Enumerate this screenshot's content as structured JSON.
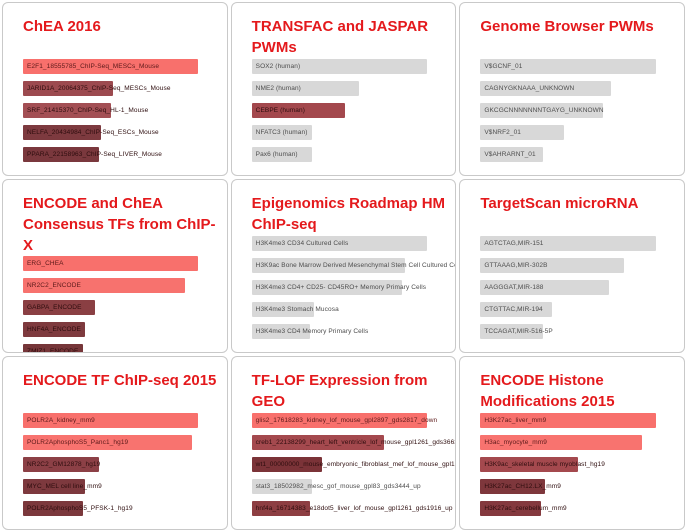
{
  "colors": {
    "title_red": "#e4191c",
    "bar_bright_red": "#f8706c",
    "bar_gray": "#d8d8d8"
  },
  "panels": [
    {
      "title": "ChEA 2016",
      "bars": [
        {
          "label": "E2F1_18555785_ChIP-Seq_MESCs_Mouse",
          "width_pct": 90,
          "color": "#f8706c",
          "shade": "bright"
        },
        {
          "label": "JARID1A_20064375_ChIP-Seq_MESCs_Mouse",
          "width_pct": 46,
          "color": "#9c4a4f",
          "shade": "dark"
        },
        {
          "label": "SRF_21415370_ChIP-Seq_HL-1_Mouse",
          "width_pct": 45,
          "color": "#a34f54",
          "shade": "dark"
        },
        {
          "label": "NELFA_20434984_ChIP-Seq_ESCs_Mouse",
          "width_pct": 40,
          "color": "#7d3a3f",
          "shade": "dark"
        },
        {
          "label": "PPARA_22158963_ChIP-Seq_LIVER_Mouse",
          "width_pct": 39,
          "color": "#7a383d",
          "shade": "dark"
        }
      ]
    },
    {
      "title": "TRANSFAC and JASPAR PWMs",
      "bars": [
        {
          "label": "SOX2 (human)",
          "width_pct": 90,
          "color": "#d8d8d8",
          "shade": "gray"
        },
        {
          "label": "NME2 (human)",
          "width_pct": 55,
          "color": "#d8d8d8",
          "shade": "gray"
        },
        {
          "label": "CEBPE (human)",
          "width_pct": 48,
          "color": "#a3484d",
          "shade": "dark"
        },
        {
          "label": "NFATC3 (human)",
          "width_pct": 31,
          "color": "#d8d8d8",
          "shade": "gray"
        },
        {
          "label": "Pax6 (human)",
          "width_pct": 31,
          "color": "#d8d8d8",
          "shade": "gray"
        }
      ]
    },
    {
      "title": "Genome Browser PWMs",
      "bars": [
        {
          "label": "V$GCNF_01",
          "width_pct": 90,
          "color": "#d8d8d8",
          "shade": "gray"
        },
        {
          "label": "CAGNYGKNAAA_UNKNOWN",
          "width_pct": 67,
          "color": "#d8d8d8",
          "shade": "gray"
        },
        {
          "label": "GKCGCNNNNNNNTGAYG_UNKNOWN",
          "width_pct": 63,
          "color": "#d8d8d8",
          "shade": "gray"
        },
        {
          "label": "V$NRF2_01",
          "width_pct": 43,
          "color": "#d8d8d8",
          "shade": "gray"
        },
        {
          "label": "V$AHRARNT_01",
          "width_pct": 32,
          "color": "#d8d8d8",
          "shade": "gray"
        }
      ]
    },
    {
      "title": "ENCODE and ChEA Consensus TFs from ChIP-X",
      "bars": [
        {
          "label": "ERG_CHEA",
          "width_pct": 90,
          "color": "#f8706c",
          "shade": "bright"
        },
        {
          "label": "NR2C2_ENCODE",
          "width_pct": 83,
          "color": "#f7726e",
          "shade": "bright"
        },
        {
          "label": "GABPA_ENCODE",
          "width_pct": 37,
          "color": "#8a3f43",
          "shade": "dark"
        },
        {
          "label": "HNF4A_ENCODE",
          "width_pct": 32,
          "color": "#7e3a3e",
          "shade": "dark"
        },
        {
          "label": "ZMIZ1_ENCODE",
          "width_pct": 31,
          "color": "#763639",
          "shade": "dark"
        }
      ]
    },
    {
      "title": "Epigenomics Roadmap HM ChIP-seq",
      "bars": [
        {
          "label": "H3K4me3 CD34 Cultured Cells",
          "width_pct": 90,
          "color": "#d8d8d8",
          "shade": "gray"
        },
        {
          "label": "H3K9ac Bone Marrow Derived Mesenchymal Stem Cell Cultured Cells",
          "width_pct": 79,
          "color": "#d8d8d8",
          "shade": "gray"
        },
        {
          "label": "H3K4me3 CD4+ CD25- CD45RO+ Memory Primary Cells",
          "width_pct": 77,
          "color": "#d8d8d8",
          "shade": "gray"
        },
        {
          "label": "H3K4me3 Stomach Mucosa",
          "width_pct": 32,
          "color": "#d8d8d8",
          "shade": "gray"
        },
        {
          "label": "H3K4me3 CD4 Memory Primary Cells",
          "width_pct": 30,
          "color": "#d8d8d8",
          "shade": "gray"
        }
      ]
    },
    {
      "title": "TargetScan microRNA",
      "bars": [
        {
          "label": "AGTCTAG,MIR-151",
          "width_pct": 90,
          "color": "#d8d8d8",
          "shade": "gray"
        },
        {
          "label": "GTTAAAG,MIR-302B",
          "width_pct": 74,
          "color": "#d8d8d8",
          "shade": "gray"
        },
        {
          "label": "AAGGGAT,MIR-188",
          "width_pct": 66,
          "color": "#d8d8d8",
          "shade": "gray"
        },
        {
          "label": "CTGTTAC,MIR-194",
          "width_pct": 37,
          "color": "#d8d8d8",
          "shade": "gray"
        },
        {
          "label": "TCCAGAT,MIR-516-5P",
          "width_pct": 32,
          "color": "#d8d8d8",
          "shade": "gray"
        }
      ]
    },
    {
      "title": "ENCODE TF ChIP-seq 2015",
      "bars": [
        {
          "label": "POLR2A_kidney_mm9",
          "width_pct": 90,
          "color": "#f8706c",
          "shade": "bright"
        },
        {
          "label": "POLR2AphosphoS5_Panc1_hg19",
          "width_pct": 87,
          "color": "#f8736f",
          "shade": "bright"
        },
        {
          "label": "NR2C2_GM12878_hg19",
          "width_pct": 39,
          "color": "#8c4046",
          "shade": "dark"
        },
        {
          "label": "MYC_MEL cell line_mm9",
          "width_pct": 32,
          "color": "#7d393e",
          "shade": "dark"
        },
        {
          "label": "POLR2AphosphoS5_PFSK-1_hg19",
          "width_pct": 31,
          "color": "#7b383c",
          "shade": "dark"
        }
      ]
    },
    {
      "title": "TF-LOF Expression from GEO",
      "bars": [
        {
          "label": "glis2_17618283_kidney_lof_mouse_gpl2897_gds2817_down",
          "width_pct": 90,
          "color": "#f8706c",
          "shade": "bright"
        },
        {
          "label": "creb1_22138299_heart_left_ventricle_lof_mouse_gpl1261_gds3663_down",
          "width_pct": 68,
          "color": "#a4494e",
          "shade": "dark"
        },
        {
          "label": "wt1_00000000_mouse_embryonic_fibroblast_mef_lof_mouse_gpl1261_gse15325_down",
          "width_pct": 36,
          "color": "#7b3338",
          "shade": "dark"
        },
        {
          "label": "stat3_18502982_mesc_gof_mouse_gpl83_gds3444_up",
          "width_pct": 31,
          "color": "#d8d8d8",
          "shade": "gray"
        },
        {
          "label": "hnf4a_16714383_e18dot5_liver_lof_mouse_gpl1261_gds1916_up",
          "width_pct": 30,
          "color": "#8d3e42",
          "shade": "dark"
        }
      ]
    },
    {
      "title": "ENCODE Histone Modifications 2015",
      "bars": [
        {
          "label": "H3K27ac_liver_mm9",
          "width_pct": 90,
          "color": "#f8706c",
          "shade": "bright"
        },
        {
          "label": "H3ac_myocyte_mm9",
          "width_pct": 83,
          "color": "#f8736f",
          "shade": "bright"
        },
        {
          "label": "H3K9ac_skeletal muscle myoblast_hg19",
          "width_pct": 50,
          "color": "#a4494e",
          "shade": "dark"
        },
        {
          "label": "H3K27ac_CH12.LX_mm9",
          "width_pct": 33,
          "color": "#7e373c",
          "shade": "dark"
        },
        {
          "label": "H3K27ac_cerebellum_mm9",
          "width_pct": 31,
          "color": "#84393e",
          "shade": "dark"
        }
      ]
    }
  ]
}
